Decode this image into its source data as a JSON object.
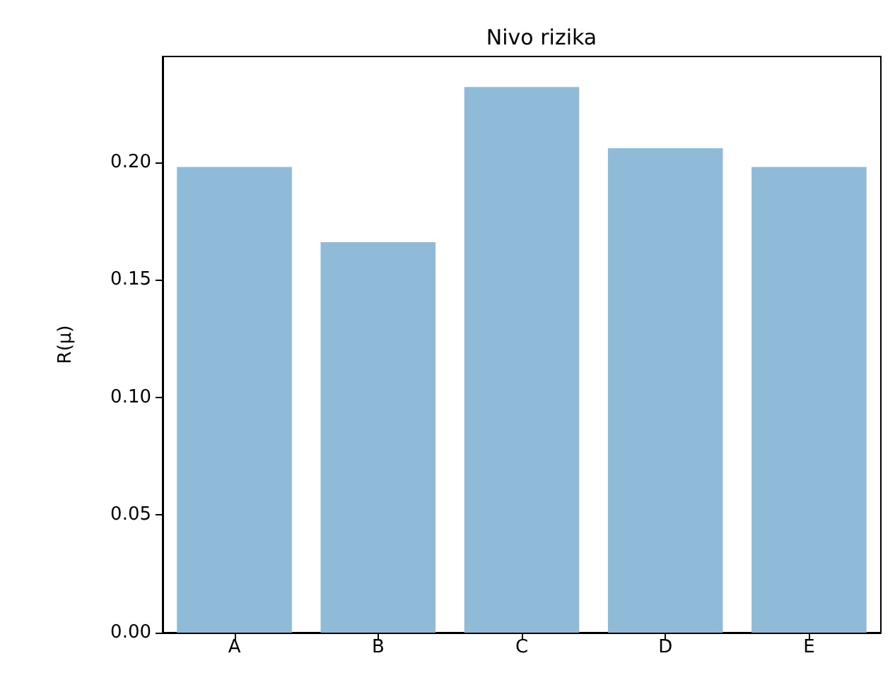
{
  "chart_data": {
    "type": "bar",
    "title": "Nivo rizika",
    "ylabel": "R(μ)",
    "categories": [
      "A",
      "B",
      "C",
      "D",
      "E"
    ],
    "values": [
      0.198,
      0.166,
      0.232,
      0.206,
      0.198
    ],
    "color": "#8fbbd9",
    "ylim": [
      0,
      0.245
    ],
    "yticks": [
      {
        "value": 0,
        "label": "0.00"
      },
      {
        "value": 0.05,
        "label": "0.05"
      },
      {
        "value": 0.1,
        "label": "0.10"
      },
      {
        "value": 0.15,
        "label": "0.15"
      },
      {
        "value": 0.2,
        "label": "0.20"
      }
    ],
    "grid": false
  }
}
